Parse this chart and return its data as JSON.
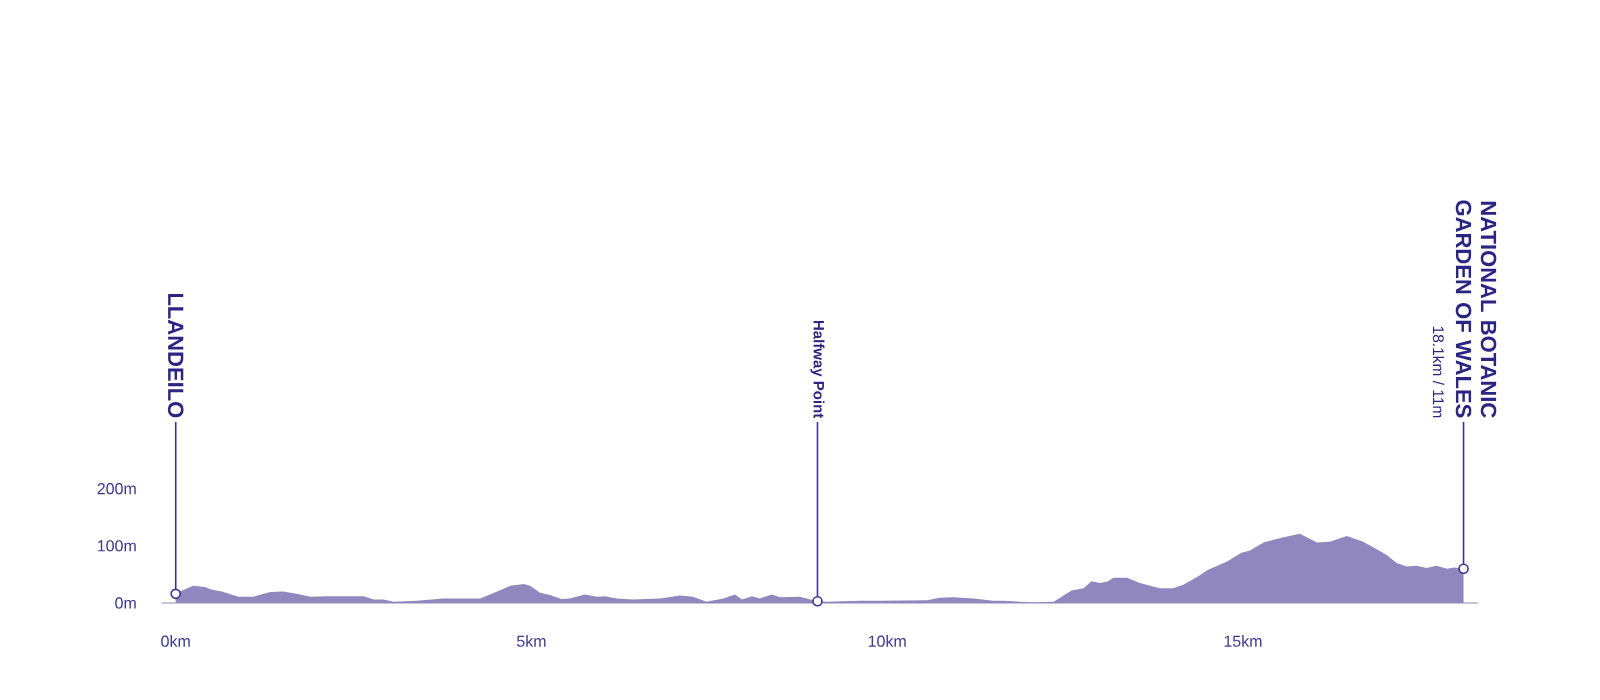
{
  "chart_data": {
    "type": "area",
    "color": "#9087be",
    "x": [
      0,
      0.06,
      0.25,
      0.41,
      0.51,
      0.65,
      0.88,
      1.09,
      1.33,
      1.51,
      1.7,
      1.89,
      2.12,
      2.64,
      2.78,
      2.92,
      3.06,
      3.39,
      3.76,
      4.28,
      4.46,
      4.7,
      4.89,
      4.98,
      5.12,
      5.26,
      5.42,
      5.54,
      5.75,
      5.92,
      6.03,
      6.2,
      6.43,
      6.81,
      7.09,
      7.27,
      7.46,
      7.7,
      7.86,
      7.96,
      8.1,
      8.21,
      8.38,
      8.49,
      8.77,
      8.96,
      9.02,
      9.15,
      9.62,
      9.9,
      10.56,
      10.74,
      10.93,
      11.21,
      11.49,
      11.63,
      12.05,
      12.34,
      12.59,
      12.76,
      12.87,
      12.99,
      13.09,
      13.18,
      13.37,
      13.55,
      13.83,
      14.02,
      14.16,
      14.35,
      14.51,
      14.77,
      14.98,
      15.1,
      15.29,
      15.57,
      15.8,
      16.04,
      16.22,
      16.46,
      16.69,
      16.88,
      17.02,
      17.16,
      17.3,
      17.44,
      17.58,
      17.72,
      17.87,
      17.97,
      18.1
    ],
    "values": [
      16,
      20,
      30,
      28,
      23,
      20,
      11,
      11,
      19,
      20,
      16,
      11,
      12,
      12,
      6,
      6,
      2,
      4,
      8,
      8,
      17,
      30,
      33,
      30,
      18,
      14,
      7,
      8,
      15,
      11,
      12,
      8,
      6,
      8,
      13,
      11,
      2,
      8,
      15,
      6,
      12,
      8,
      15,
      10,
      11,
      5,
      3,
      2,
      4,
      4,
      5,
      9,
      10,
      8,
      4,
      4,
      1,
      2,
      22,
      26,
      38,
      35,
      37,
      44,
      44,
      35,
      26,
      26,
      32,
      45,
      58,
      72,
      88,
      92,
      106,
      115,
      121,
      106,
      107,
      117,
      107,
      94,
      84,
      70,
      64,
      65,
      61,
      65,
      60,
      62,
      60
    ],
    "xlim": [
      -0.2,
      18.3
    ],
    "ylim": [
      0,
      200
    ],
    "xticks": [
      {
        "value": 0,
        "label": "0km"
      },
      {
        "value": 5,
        "label": "5km"
      },
      {
        "value": 10,
        "label": "10km"
      },
      {
        "value": 15,
        "label": "15km"
      }
    ],
    "yticks": [
      {
        "value": 0,
        "label": "0m"
      },
      {
        "value": 100,
        "label": "100m"
      },
      {
        "value": 200,
        "label": "200m"
      }
    ],
    "annotations": [
      {
        "text": "LLANDEILO",
        "x": 0,
        "y": 16
      },
      {
        "text": "Halfway Point",
        "x": 9.02,
        "y": 3
      },
      {
        "text": "NATIONAL BOTANIC GARDEN OF WALES",
        "x": 18.1,
        "y": 60
      },
      {
        "text": "18.1km / 11m",
        "x": 18.1,
        "y": 60
      }
    ]
  }
}
